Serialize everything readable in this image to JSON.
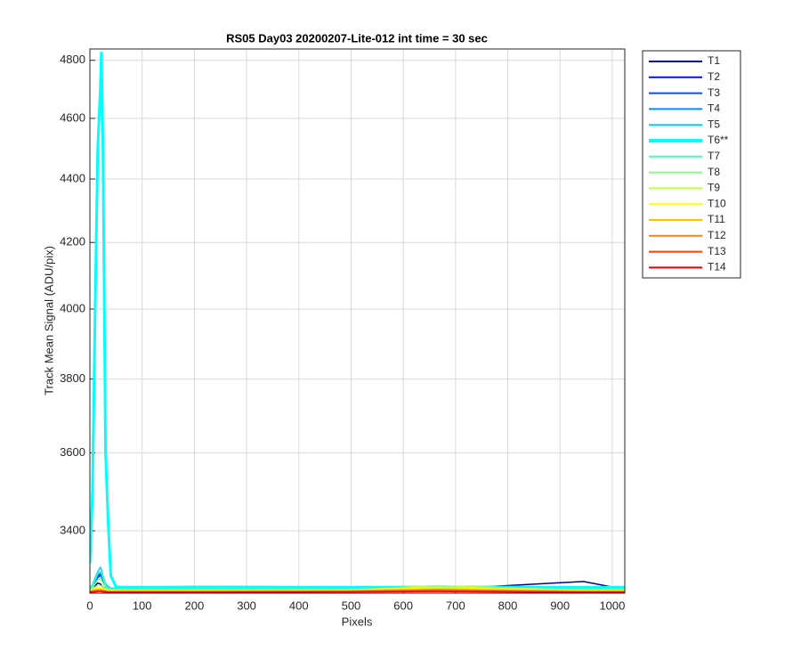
{
  "chart_data": {
    "type": "line",
    "title": "RS05 Day03 20200207-Lite-012 int time = 30 sec",
    "xlabel": "Pixels",
    "ylabel": "Track Mean Signal (ADU/pix)",
    "yscale": "log",
    "grid": true,
    "xlim": [
      0,
      1024
    ],
    "xticks": [
      0,
      100,
      200,
      300,
      400,
      500,
      600,
      700,
      800,
      900,
      1000
    ],
    "ylim": [
      3248,
      4840
    ],
    "yticks": [
      3400,
      3600,
      3800,
      4000,
      4200,
      4400,
      4600,
      4800
    ],
    "legend_position": "outside-right",
    "x": [
      0,
      5,
      10,
      15,
      20,
      22,
      25,
      30,
      35,
      40,
      50,
      100,
      200,
      500,
      665,
      945,
      1023
    ],
    "series": [
      {
        "name": "T1",
        "color": "#000090",
        "values": [
          3258,
          3260,
          3266,
          3272,
          3270,
          3266,
          3262,
          3259,
          3258,
          3257,
          3257,
          3257,
          3257,
          3257,
          3257,
          3276,
          3257
        ]
      },
      {
        "name": "T2",
        "color": "#0010ff",
        "values": [
          3257,
          3262,
          3275,
          3290,
          3292,
          3290,
          3280,
          3262,
          3258,
          3257,
          3257,
          3257,
          3257,
          3257,
          3257,
          3258,
          3257
        ]
      },
      {
        "name": "T3",
        "color": "#0050ff",
        "values": [
          3256,
          3260,
          3270,
          3285,
          3290,
          3288,
          3276,
          3262,
          3258,
          3256,
          3256,
          3256,
          3256,
          3256,
          3256,
          3257,
          3256
        ]
      },
      {
        "name": "T4",
        "color": "#0090ff",
        "values": [
          3257,
          3262,
          3278,
          3292,
          3296,
          3293,
          3282,
          3264,
          3258,
          3257,
          3257,
          3258,
          3257,
          3257,
          3258,
          3257,
          3257
        ]
      },
      {
        "name": "T5",
        "color": "#00d0ff",
        "values": [
          3260,
          3268,
          3285,
          3300,
          3310,
          3305,
          3290,
          3270,
          3264,
          3260,
          3260,
          3260,
          3260,
          3260,
          3260,
          3260,
          3260
        ]
      },
      {
        "name": "T6**",
        "color": "#00ffff",
        "values": [
          3320,
          3500,
          4000,
          4500,
          4700,
          4830,
          4500,
          3600,
          3420,
          3290,
          3263,
          3262,
          3263,
          3262,
          3263,
          3262,
          3262
        ]
      },
      {
        "name": "T7",
        "color": "#40ffc0",
        "values": [
          3258,
          3265,
          3280,
          3295,
          3300,
          3298,
          3285,
          3266,
          3260,
          3258,
          3258,
          3258,
          3258,
          3258,
          3259,
          3258,
          3258
        ]
      },
      {
        "name": "T8",
        "color": "#80ff80",
        "values": [
          3256,
          3260,
          3270,
          3280,
          3282,
          3280,
          3272,
          3260,
          3257,
          3256,
          3256,
          3256,
          3256,
          3256,
          3260,
          3256,
          3256
        ]
      },
      {
        "name": "T9",
        "color": "#c0ff40",
        "values": [
          3255,
          3258,
          3262,
          3266,
          3266,
          3265,
          3262,
          3257,
          3256,
          3255,
          3255,
          3255,
          3255,
          3256,
          3266,
          3255,
          3255
        ]
      },
      {
        "name": "T10",
        "color": "#ffff00",
        "values": [
          3254,
          3256,
          3258,
          3260,
          3260,
          3259,
          3258,
          3256,
          3255,
          3254,
          3254,
          3254,
          3254,
          3255,
          3262,
          3254,
          3254
        ]
      },
      {
        "name": "T11",
        "color": "#ffbf00",
        "values": [
          3253,
          3254,
          3256,
          3257,
          3257,
          3257,
          3256,
          3254,
          3253,
          3253,
          3253,
          3253,
          3253,
          3254,
          3258,
          3253,
          3253
        ]
      },
      {
        "name": "T12",
        "color": "#ff8000",
        "values": [
          3252,
          3253,
          3254,
          3255,
          3255,
          3255,
          3254,
          3253,
          3252,
          3252,
          3252,
          3252,
          3252,
          3253,
          3256,
          3252,
          3252
        ]
      },
      {
        "name": "T13",
        "color": "#ff4000",
        "values": [
          3251,
          3252,
          3253,
          3253,
          3253,
          3253,
          3253,
          3252,
          3251,
          3251,
          3251,
          3251,
          3251,
          3252,
          3254,
          3251,
          3251
        ]
      },
      {
        "name": "T14",
        "color": "#f00000",
        "values": [
          3250,
          3251,
          3251,
          3252,
          3252,
          3252,
          3251,
          3251,
          3250,
          3250,
          3250,
          3250,
          3250,
          3251,
          3252,
          3250,
          3250
        ]
      }
    ]
  }
}
